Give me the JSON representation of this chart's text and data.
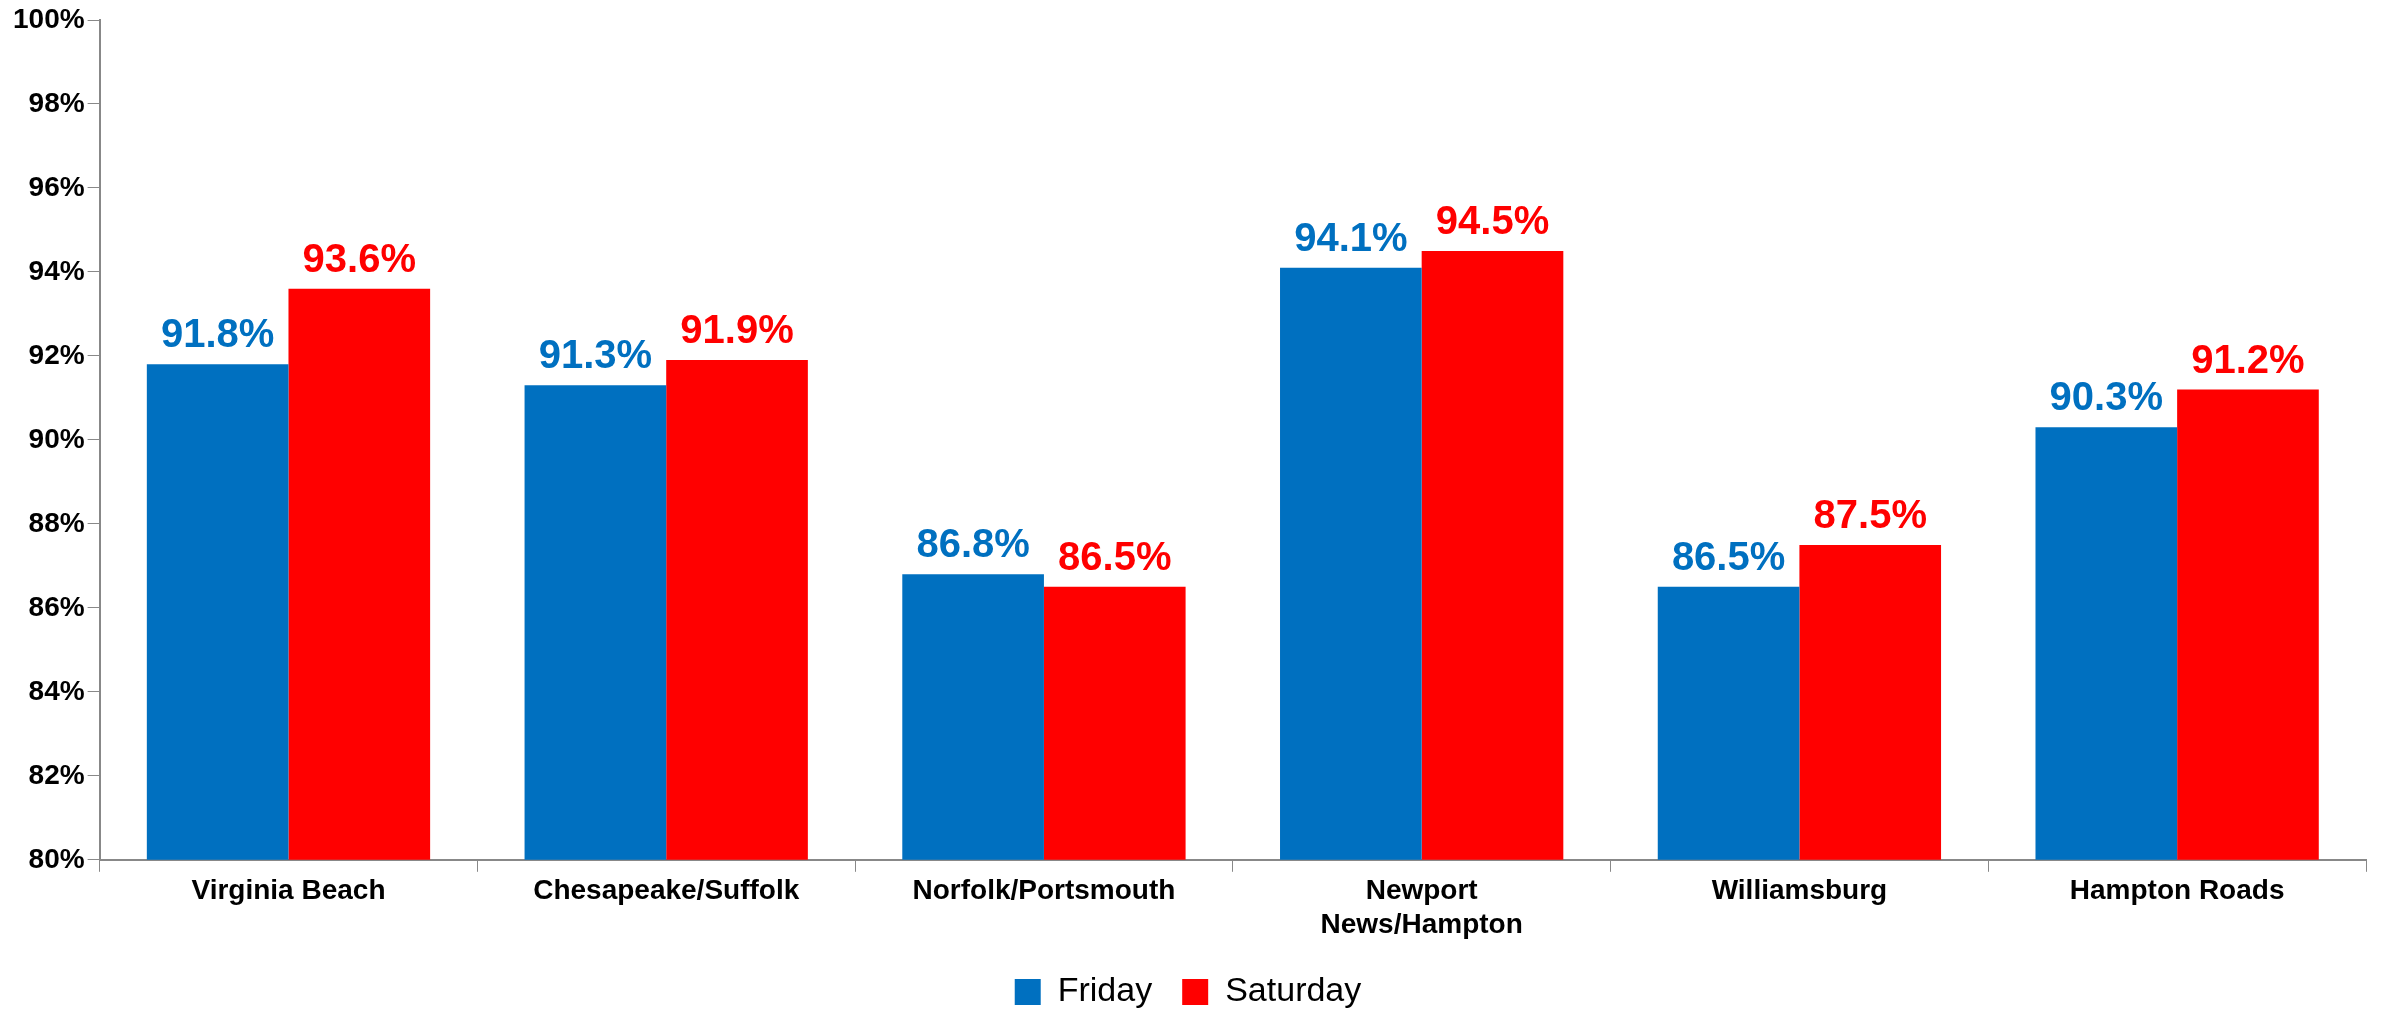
{
  "chart_data": {
    "type": "bar",
    "categories": [
      "Virginia Beach",
      "Chesapeake/Suffolk",
      "Norfolk/Portsmouth",
      "Newport News/Hampton",
      "Williamsburg",
      "Hampton Roads"
    ],
    "series": [
      {
        "name": "Friday",
        "color": "#0070c0",
        "values": [
          91.8,
          91.3,
          86.8,
          94.1,
          86.5,
          90.3
        ],
        "value_labels": [
          "91.8%",
          "91.3%",
          "86.8%",
          "94.1%",
          "86.5%",
          "90.3%"
        ]
      },
      {
        "name": "Saturday",
        "color": "#ff0000",
        "values": [
          93.6,
          91.9,
          86.5,
          94.5,
          87.5,
          91.2
        ],
        "value_labels": [
          "93.6%",
          "91.9%",
          "86.5%",
          "94.5%",
          "87.5%",
          "91.2%"
        ]
      }
    ],
    "ylim": [
      80,
      100
    ],
    "yticks": [
      {
        "value": 80,
        "label": "80%"
      },
      {
        "value": 82,
        "label": "82%"
      },
      {
        "value": 84,
        "label": "84%"
      },
      {
        "value": 86,
        "label": "86%"
      },
      {
        "value": 88,
        "label": "88%"
      },
      {
        "value": 90,
        "label": "90%"
      },
      {
        "value": 92,
        "label": "92%"
      },
      {
        "value": 94,
        "label": "94%"
      },
      {
        "value": 96,
        "label": "96%"
      },
      {
        "value": 98,
        "label": "98%"
      },
      {
        "value": 100,
        "label": "100%"
      }
    ],
    "grid": false,
    "legend": "bottom"
  }
}
